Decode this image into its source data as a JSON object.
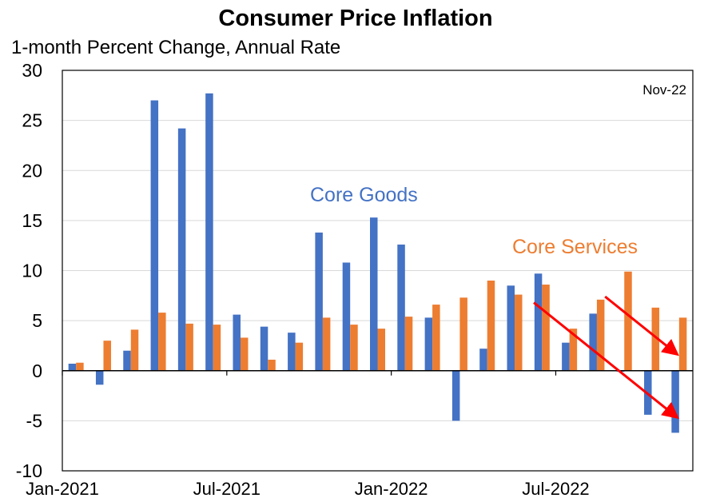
{
  "chart_data": {
    "type": "bar",
    "title": "Consumer Price Inflation",
    "subtitle": "1-month Percent Change, Annual Rate",
    "date_note": "Nov-22",
    "ylim": [
      -10,
      30
    ],
    "yticks": [
      -10,
      -5,
      0,
      5,
      10,
      15,
      20,
      25,
      30
    ],
    "grid": true,
    "categories": [
      "Jan-2021",
      "Feb-2021",
      "Mar-2021",
      "Apr-2021",
      "May-2021",
      "Jun-2021",
      "Jul-2021",
      "Aug-2021",
      "Sep-2021",
      "Oct-2021",
      "Nov-2021",
      "Dec-2021",
      "Jan-2022",
      "Feb-2022",
      "Mar-2022",
      "Apr-2022",
      "May-2022",
      "Jun-2022",
      "Jul-2022",
      "Aug-2022",
      "Sep-2022",
      "Oct-2022",
      "Nov-2022"
    ],
    "x_tick_labels": [
      {
        "index": 0,
        "label": "Jan-2021"
      },
      {
        "index": 6,
        "label": "Jul-2021"
      },
      {
        "index": 12,
        "label": "Jan-2022"
      },
      {
        "index": 18,
        "label": "Jul-2022"
      }
    ],
    "series": [
      {
        "name": "Core Goods",
        "color": "#4472C4",
        "values": [
          0.7,
          -1.4,
          2.0,
          27.0,
          24.2,
          27.7,
          5.6,
          4.4,
          3.8,
          13.8,
          10.8,
          15.3,
          12.6,
          5.3,
          -5.0,
          2.2,
          8.5,
          9.7,
          2.8,
          5.7,
          -0.1,
          -4.4,
          -6.2
        ]
      },
      {
        "name": "Core Services",
        "color": "#ED7D31",
        "values": [
          0.8,
          3.0,
          4.1,
          5.8,
          4.7,
          4.6,
          3.3,
          1.1,
          2.8,
          5.3,
          4.6,
          4.2,
          5.4,
          6.6,
          7.3,
          9.0,
          7.6,
          8.6,
          4.2,
          7.1,
          9.9,
          6.3,
          5.3
        ]
      }
    ],
    "annotations": [
      {
        "type": "arrow",
        "color": "#FF0000",
        "from": {
          "x": 17.2,
          "y": 6.8
        },
        "to": {
          "x": 22.4,
          "y": -4.6
        }
      },
      {
        "type": "arrow",
        "color": "#FF0000",
        "from": {
          "x": 19.8,
          "y": 7.4
        },
        "to": {
          "x": 22.4,
          "y": 1.7
        }
      }
    ]
  }
}
